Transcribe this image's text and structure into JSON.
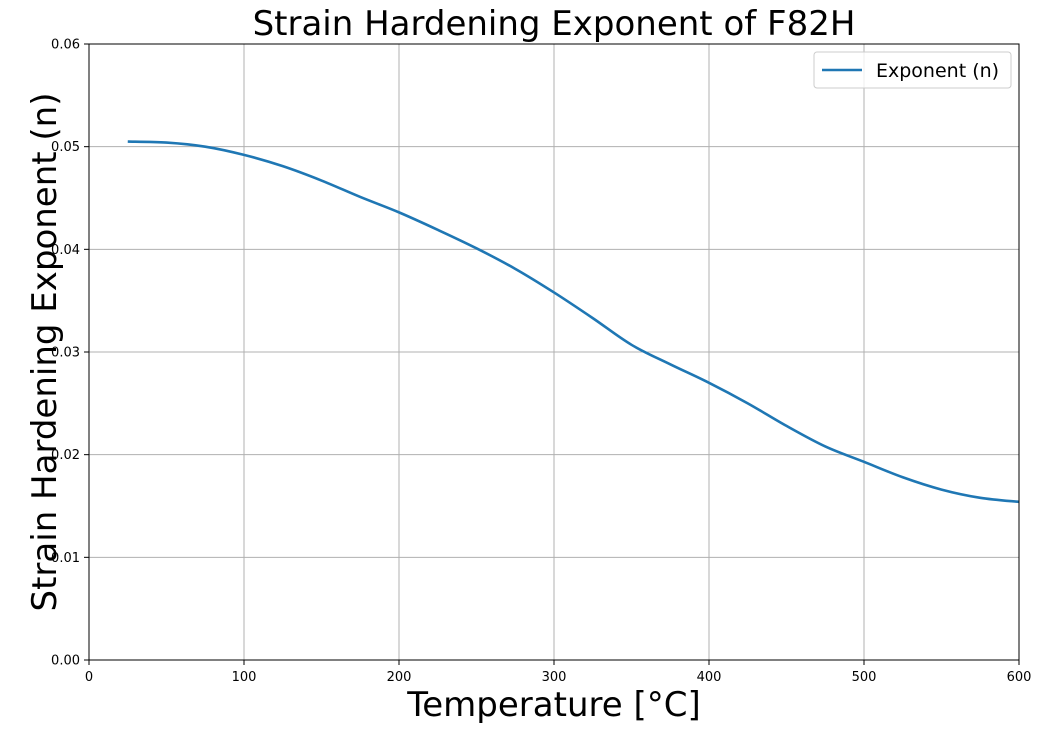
{
  "chart_data": {
    "type": "line",
    "title": "Strain Hardening Exponent of F82H",
    "xlabel": "Temperature [°C]",
    "ylabel": "Strain Hardening Exponent (n)",
    "xlim": [
      0,
      600
    ],
    "ylim": [
      0,
      0.06
    ],
    "xticks": [
      0,
      100,
      200,
      300,
      400,
      500,
      600
    ],
    "yticks": [
      0.0,
      0.01,
      0.02,
      0.03,
      0.04,
      0.05,
      0.06
    ],
    "xtick_labels": [
      "0",
      "100",
      "200",
      "300",
      "400",
      "500",
      "600"
    ],
    "ytick_labels": [
      "0.00",
      "0.01",
      "0.02",
      "0.03",
      "0.04",
      "0.05",
      "0.06"
    ],
    "grid": true,
    "legend_position": "top-right",
    "series": [
      {
        "name": "Exponent (n)",
        "color": "#1f77b4",
        "x": [
          25,
          50,
          75,
          100,
          125,
          150,
          175,
          200,
          225,
          250,
          275,
          300,
          325,
          350,
          375,
          400,
          425,
          450,
          475,
          500,
          525,
          550,
          575,
          600
        ],
        "y": [
          0.0505,
          0.0504,
          0.05,
          0.0492,
          0.0481,
          0.0467,
          0.0451,
          0.0436,
          0.0419,
          0.0401,
          0.0381,
          0.0358,
          0.0333,
          0.0307,
          0.0288,
          0.027,
          0.025,
          0.0228,
          0.0208,
          0.0193,
          0.0178,
          0.0166,
          0.0158,
          0.0154
        ]
      }
    ]
  }
}
